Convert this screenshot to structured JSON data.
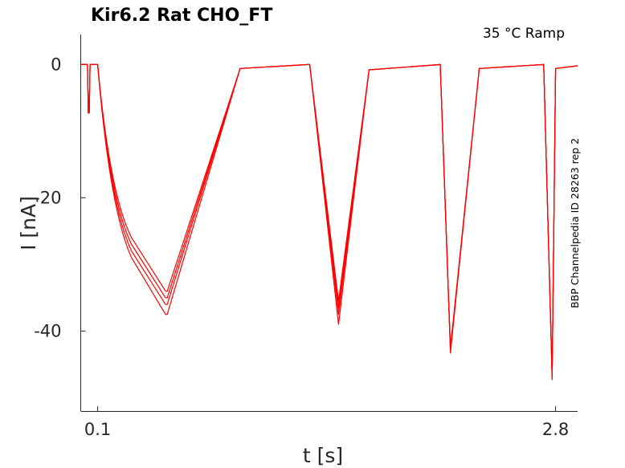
{
  "chart_data": {
    "type": "line",
    "title": "Kir6.2  Rat  CHO_FT",
    "condition": "35 °C  Ramp",
    "side_label": "BBP Channelpedia ID 28263 rep 2",
    "xlabel": "t [s]",
    "ylabel": "I [nA]",
    "xlim": [
      0.0,
      2.93
    ],
    "ylim": [
      -52,
      4.5
    ],
    "xticks": [
      0.1,
      2.8
    ],
    "xtick_labels": [
      "0.1",
      "2.8"
    ],
    "yticks": [
      0,
      -20,
      -40
    ],
    "ytick_labels": [
      "0",
      "-20",
      "-40"
    ],
    "grid": false,
    "trace_color": "#ff0000",
    "series": [
      {
        "x": [
          0.0,
          0.04,
          0.045,
          0.05,
          0.055,
          0.1,
          0.1,
          0.3,
          0.5,
          0.51,
          0.94,
          1.34,
          1.35,
          1.52,
          1.7,
          2.12,
          2.12,
          2.18,
          2.35,
          2.73,
          2.73,
          2.78,
          2.8,
          2.93
        ],
        "y": [
          0.0,
          0.0,
          -7.3,
          -7.2,
          0.0,
          0.0,
          0.0,
          -26.0,
          -34.0,
          -34.0,
          -0.6,
          0.0,
          0.0,
          -35.5,
          -0.8,
          0.0,
          0.0,
          -42.5,
          -0.6,
          0.0,
          0.0,
          -46.5,
          -0.6,
          -0.2
        ]
      },
      {
        "x": [
          0.0,
          0.04,
          0.045,
          0.05,
          0.055,
          0.1,
          0.1,
          0.3,
          0.5,
          0.51,
          0.94,
          1.34,
          1.35,
          1.52,
          1.7,
          2.12,
          2.12,
          2.18,
          2.35,
          2.73,
          2.73,
          2.78,
          2.8,
          2.93
        ],
        "y": [
          0.0,
          0.0,
          -7.3,
          -7.2,
          0.0,
          0.0,
          0.0,
          -27.0,
          -35.0,
          -35.0,
          -0.6,
          0.0,
          0.0,
          -36.5,
          -0.8,
          0.0,
          0.0,
          -42.8,
          -0.6,
          0.0,
          0.0,
          -46.8,
          -0.6,
          -0.2
        ]
      },
      {
        "x": [
          0.0,
          0.04,
          0.045,
          0.05,
          0.055,
          0.1,
          0.1,
          0.3,
          0.5,
          0.51,
          0.94,
          1.34,
          1.35,
          1.52,
          1.7,
          2.12,
          2.12,
          2.18,
          2.35,
          2.73,
          2.73,
          2.78,
          2.8,
          2.93
        ],
        "y": [
          0.0,
          0.0,
          -7.3,
          -7.2,
          0.0,
          0.0,
          0.0,
          -28.0,
          -36.0,
          -36.0,
          -0.6,
          0.0,
          0.0,
          -37.5,
          -0.8,
          0.0,
          0.0,
          -43.0,
          -0.6,
          0.0,
          0.0,
          -47.0,
          -0.6,
          -0.2
        ]
      },
      {
        "x": [
          0.0,
          0.04,
          0.045,
          0.05,
          0.055,
          0.1,
          0.1,
          0.3,
          0.5,
          0.51,
          0.94,
          1.34,
          1.35,
          1.52,
          1.7,
          2.12,
          2.12,
          2.18,
          2.35,
          2.73,
          2.73,
          2.78,
          2.8,
          2.93
        ],
        "y": [
          0.0,
          0.0,
          -7.3,
          -7.2,
          0.0,
          0.0,
          0.0,
          -29.0,
          -37.5,
          -37.5,
          -0.6,
          0.0,
          0.0,
          -39.0,
          -0.8,
          0.0,
          0.0,
          -43.3,
          -0.6,
          0.0,
          0.0,
          -47.3,
          -0.6,
          -0.2
        ]
      }
    ]
  }
}
